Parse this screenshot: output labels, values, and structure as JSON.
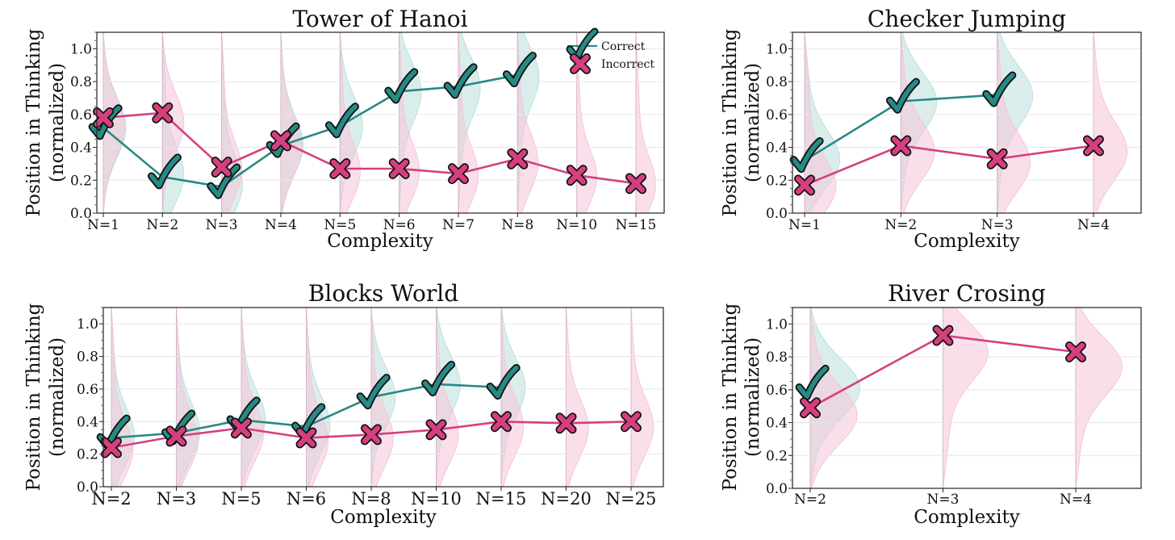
{
  "colors": {
    "correct": "#268a85",
    "incorrect": "#d63f7f",
    "correct_fill": "#b9e0dc",
    "incorrect_fill": "#f5c4da"
  },
  "legend": {
    "correct": "Correct",
    "incorrect": "Incorrect"
  },
  "chart_data": [
    {
      "type": "line",
      "title": "Tower of Hanoi",
      "xlabel": "Complexity",
      "ylabel": [
        "Position in Thinking",
        "(normalized)"
      ],
      "ylim": [
        0,
        1.1
      ],
      "yticks": [
        "0.0",
        "0.2",
        "0.4",
        "0.6",
        "0.8",
        "1.0"
      ],
      "categories": [
        "N=1",
        "N=2",
        "N=3",
        "N=4",
        "N=5",
        "N=6",
        "N=7",
        "N=8",
        "N=10",
        "N=15"
      ],
      "legend": true,
      "series": [
        {
          "name": "Correct",
          "values": [
            0.52,
            0.22,
            0.16,
            0.41,
            0.53,
            0.74,
            0.77,
            0.84,
            null,
            null
          ]
        },
        {
          "name": "Incorrect",
          "values": [
            0.58,
            0.61,
            0.28,
            0.44,
            0.27,
            0.27,
            0.24,
            0.33,
            0.23,
            0.18
          ]
        }
      ]
    },
    {
      "type": "line",
      "title": "Checker Jumping",
      "xlabel": "Complexity",
      "ylabel": [
        "Position in Thinking",
        "(normalized)"
      ],
      "ylim": [
        0,
        1.1
      ],
      "yticks": [
        "0.0",
        "0.2",
        "0.4",
        "0.6",
        "0.8",
        "1.0"
      ],
      "categories": [
        "N=1",
        "N=2",
        "N=3",
        "N=4"
      ],
      "legend": false,
      "series": [
        {
          "name": "Correct",
          "values": [
            0.32,
            0.68,
            0.72,
            null
          ]
        },
        {
          "name": "Incorrect",
          "values": [
            0.17,
            0.41,
            0.33,
            0.41
          ]
        }
      ]
    },
    {
      "type": "line",
      "title": "Blocks World",
      "xlabel": "Complexity",
      "ylabel": [
        "Position in Thinking",
        "(normalized)"
      ],
      "ylim": [
        0,
        1.1
      ],
      "yticks": [
        "0.0",
        "0.2",
        "0.4",
        "0.6",
        "0.8",
        "1.0"
      ],
      "categories": [
        "N=2",
        "N=3",
        "N=5",
        "N=6",
        "N=8",
        "N=10",
        "N=15",
        "N=20",
        "N=25"
      ],
      "legend": false,
      "series": [
        {
          "name": "Correct",
          "values": [
            0.3,
            0.33,
            0.41,
            0.37,
            0.55,
            0.63,
            0.61,
            null,
            null
          ]
        },
        {
          "name": "Incorrect",
          "values": [
            0.24,
            0.31,
            0.36,
            0.3,
            0.32,
            0.35,
            0.4,
            0.39,
            0.4
          ]
        }
      ]
    },
    {
      "type": "line",
      "title": "River Crosing",
      "xlabel": "Complexity",
      "ylabel": [
        "Position in Thinking",
        "(normalized)"
      ],
      "ylim": [
        0,
        1.1
      ],
      "yticks": [
        "0.0",
        "0.2",
        "0.4",
        "0.6",
        "0.8",
        "1.0"
      ],
      "categories": [
        "N=2",
        "N=3",
        "N=4"
      ],
      "legend": false,
      "series": [
        {
          "name": "Correct",
          "values": [
            0.61,
            null,
            null
          ]
        },
        {
          "name": "Incorrect",
          "values": [
            0.49,
            0.93,
            0.83
          ]
        }
      ]
    }
  ]
}
